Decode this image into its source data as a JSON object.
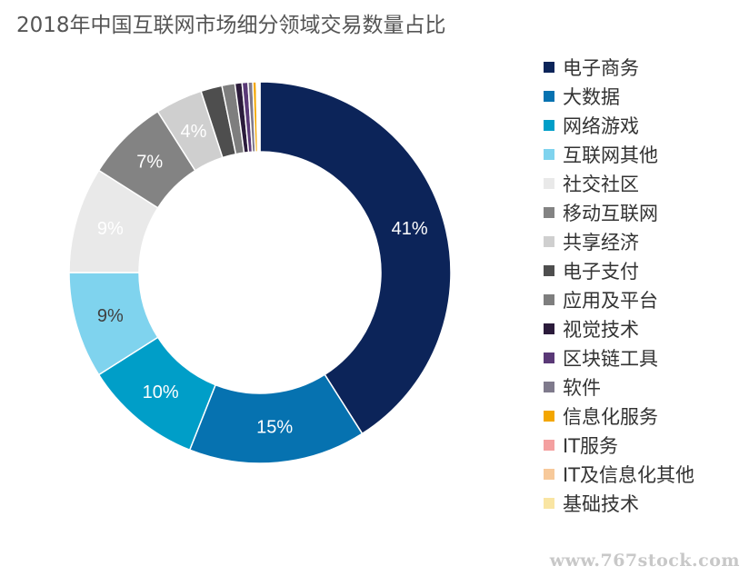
{
  "chart_data": {
    "type": "pie",
    "title": "2018年中国互联网市场细分领域交易数量占比",
    "donut": true,
    "legend_position": "right",
    "slices": [
      {
        "label": "电子商务",
        "value": 41,
        "display": "41%",
        "color": "#0c2459",
        "label_color": "#ffffff"
      },
      {
        "label": "大数据",
        "value": 15,
        "display": "15%",
        "color": "#0672b0",
        "label_color": "#ffffff"
      },
      {
        "label": "网络游戏",
        "value": 10,
        "display": "10%",
        "color": "#009ec8",
        "label_color": "#ffffff"
      },
      {
        "label": "互联网其他",
        "value": 9,
        "display": "9%",
        "color": "#7fd3ee",
        "label_color": "#404040"
      },
      {
        "label": "社交社区",
        "value": 9,
        "display": "9%",
        "color": "#e9e9e9",
        "label_color": "#ffffff"
      },
      {
        "label": "移动互联网",
        "value": 7,
        "display": "7%",
        "color": "#838383",
        "label_color": "#ffffff"
      },
      {
        "label": "共享经济",
        "value": 4,
        "display": "4%",
        "color": "#cfcfcf",
        "label_color": "#ffffff"
      },
      {
        "label": "电子支付",
        "value": 1.8,
        "display": "",
        "color": "#4e4e4e",
        "label_color": "#ffffff"
      },
      {
        "label": "应用及平台",
        "value": 1.1,
        "display": "",
        "color": "#7e7e7e",
        "label_color": "#ffffff"
      },
      {
        "label": "视觉技术",
        "value": 0.6,
        "display": "",
        "color": "#2b1b3b",
        "label_color": "#ffffff"
      },
      {
        "label": "区块链工具",
        "value": 0.5,
        "display": "",
        "color": "#5a3977",
        "label_color": "#ffffff"
      },
      {
        "label": "软件",
        "value": 0.4,
        "display": "",
        "color": "#7f7a8c",
        "label_color": "#ffffff"
      },
      {
        "label": "信息化服务",
        "value": 0.3,
        "display": "",
        "color": "#f3a600",
        "label_color": "#ffffff"
      },
      {
        "label": "IT服务",
        "value": 0.1,
        "display": "",
        "color": "#f4a0a0",
        "label_color": "#ffffff"
      },
      {
        "label": "IT及信息化其他",
        "value": 0.1,
        "display": "",
        "color": "#f7c99a",
        "label_color": "#ffffff"
      },
      {
        "label": "基础技术",
        "value": 0.1,
        "display": "",
        "color": "#f9e5a3",
        "label_color": "#ffffff"
      }
    ]
  },
  "watermark": "www.767stock.com"
}
